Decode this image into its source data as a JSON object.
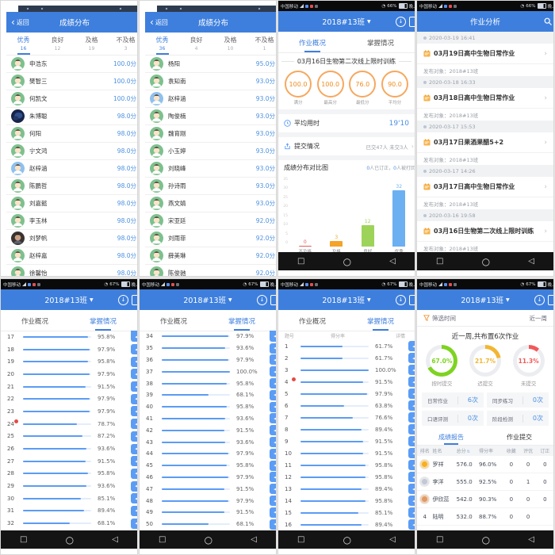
{
  "colors": {
    "header_blue": "#3e7fdd",
    "link_blue": "#4a90e2",
    "ring_orange": "#f08c1f",
    "progress_blue": "#5b9cf5"
  },
  "icons": {
    "back": "‹",
    "dropdown": "▼",
    "chevron": "›",
    "nav_recents": "□",
    "nav_home": "○",
    "nav_back": "◁",
    "download": "↓",
    "view_btn": "◂",
    "alarm": "◔",
    "sort": "⇅"
  },
  "common": {
    "back_label": "返回"
  },
  "status": {
    "carrier": "中国移动",
    "pct_row1": "66%",
    "pct_row2": "67%",
    "time": "晚上2"
  },
  "grade_dist_a": {
    "title": "成绩分布",
    "tabs": [
      {
        "label": "优秀",
        "count": "16",
        "active": true
      },
      {
        "label": "良好",
        "count": "12"
      },
      {
        "label": "及格",
        "count": "19"
      },
      {
        "label": "不及格",
        "count": "3"
      }
    ],
    "students": [
      {
        "name": "申浩东",
        "score": "100.0分",
        "avatar": "cartoon"
      },
      {
        "name": "樊智三",
        "score": "100.0分",
        "avatar": "cartoon"
      },
      {
        "name": "何凯文",
        "score": "100.0分",
        "avatar": "cartoon"
      },
      {
        "name": "朱博聪",
        "score": "98.0分",
        "avatar": "photo"
      },
      {
        "name": "何阳",
        "score": "98.0分",
        "avatar": "cartoon"
      },
      {
        "name": "宁文鸿",
        "score": "98.0分",
        "avatar": "cartoon"
      },
      {
        "name": "赵梓涵",
        "score": "98.0分",
        "avatar": "boy"
      },
      {
        "name": "陈鹏哲",
        "score": "98.0分",
        "avatar": "cartoon"
      },
      {
        "name": "刘嘉懿",
        "score": "98.0分",
        "avatar": "cartoon"
      },
      {
        "name": "李玉林",
        "score": "98.0分",
        "avatar": "cartoon"
      },
      {
        "name": "刘梦帆",
        "score": "98.0分",
        "avatar": "photo2"
      },
      {
        "name": "赵梓嘉",
        "score": "98.0分",
        "avatar": "cartoon"
      },
      {
        "name": "徐馨怡",
        "score": "98.0分",
        "avatar": "cartoon"
      }
    ]
  },
  "grade_dist_b": {
    "title": "成绩分布",
    "tabs": [
      {
        "label": "优秀",
        "count": "36",
        "active": true
      },
      {
        "label": "良好",
        "count": "4"
      },
      {
        "label": "及格",
        "count": "10"
      },
      {
        "label": "不及格",
        "count": "1"
      }
    ],
    "students": [
      {
        "name": "杨阳",
        "score": "95.0分",
        "avatar": "cartoon"
      },
      {
        "name": "袁知南",
        "score": "93.0分",
        "avatar": "cartoon"
      },
      {
        "name": "赵梓涵",
        "score": "93.0分",
        "avatar": "boy"
      },
      {
        "name": "陶俊楠",
        "score": "93.0分",
        "avatar": "cartoon"
      },
      {
        "name": "魏育刚",
        "score": "93.0分",
        "avatar": "cartoon"
      },
      {
        "name": "小玉婷",
        "score": "93.0分",
        "avatar": "cartoon"
      },
      {
        "name": "刘晓峰",
        "score": "93.0分",
        "avatar": "cartoon"
      },
      {
        "name": "孙诗雨",
        "score": "93.0分",
        "avatar": "cartoon"
      },
      {
        "name": "燕文婧",
        "score": "93.0分",
        "avatar": "cartoon"
      },
      {
        "name": "宋亚廷",
        "score": "92.0分",
        "avatar": "cartoon"
      },
      {
        "name": "刘雨菲",
        "score": "92.0分",
        "avatar": "cartoon"
      },
      {
        "name": "薛美琳",
        "score": "92.0分",
        "avatar": "cartoon"
      },
      {
        "name": "陈俊驰",
        "score": "92.0分",
        "avatar": "cartoon"
      }
    ]
  },
  "overview": {
    "class_name": "2018#13班",
    "tab_left": "作业概况",
    "tab_right": "掌握情况",
    "hw_title": "03月16日生物第二次线上限时训练",
    "rings": [
      {
        "value": "100.0",
        "label": "满分"
      },
      {
        "value": "100.0",
        "label": "最高分"
      },
      {
        "value": "76.0",
        "label": "最低分"
      },
      {
        "value": "90.0",
        "label": "平均分"
      }
    ],
    "avg_label": "平均用时",
    "avg_value": "19'10",
    "submit_label": "提交情况",
    "submit_info": "已交47人 未交3人",
    "dist_label": "成绩分布对比图",
    "dist_info": [
      {
        "t": "0",
        "b": true
      },
      {
        "t": "人已订正，"
      },
      {
        "t": "0",
        "b": true
      },
      {
        "t": "人被打回"
      }
    ],
    "chart": {
      "type": "bar",
      "y_ticks": [
        "35",
        "30",
        "25",
        "20",
        "15",
        "10",
        "5",
        "0"
      ],
      "bars": [
        {
          "name": "不及格",
          "range": "[0%~59%]",
          "value": 0,
          "color": "#e85b5b"
        },
        {
          "name": "及格",
          "range": "[60%~79%]",
          "value": 3,
          "color": "#f5a32a"
        },
        {
          "name": "良好",
          "range": "[80%~89%]",
          "value": 12,
          "color": "#9ed35a"
        },
        {
          "name": "优秀",
          "range": "[90%~100%]",
          "value": 32,
          "color": "#6cb0f2"
        }
      ]
    }
  },
  "analysis": {
    "title": "作业分析",
    "items": [
      {
        "time": "2020-03-19 16:41",
        "title": "03月19日高中生物日常作业",
        "target": "发布对象：2018#13班"
      },
      {
        "time": "2020-03-18 16:33",
        "title": "03月18日高中生物日常作业",
        "target": "发布对象：2018#13班"
      },
      {
        "time": "2020-03-17 15:53",
        "title": "03月17日果酒果醋5+2",
        "target": "发布对象：2018#13班"
      },
      {
        "time": "2020-03-17 14:26",
        "title": "03月17日高中生物日常作业",
        "target": "发布对象：2018#13班"
      },
      {
        "time": "2020-03-16 19:58",
        "title": "03月16日生物第二次线上限时训练",
        "target": "发布对象：2018#13班"
      }
    ]
  },
  "mastery_a": {
    "class_name": "2018#13班",
    "tab_left": "作业概况",
    "tab_right": "掌握情况",
    "rows": [
      {
        "n": "17",
        "p": 95.8
      },
      {
        "n": "18",
        "p": 97.9
      },
      {
        "n": "19",
        "p": 95.8
      },
      {
        "n": "20",
        "p": 97.9
      },
      {
        "n": "21",
        "p": 91.5
      },
      {
        "n": "22",
        "p": 97.9
      },
      {
        "n": "23",
        "p": 97.9
      },
      {
        "n": "24",
        "p": 78.7,
        "red": true
      },
      {
        "n": "25",
        "p": 87.2
      },
      {
        "n": "26",
        "p": 93.6
      },
      {
        "n": "27",
        "p": 91.5
      },
      {
        "n": "28",
        "p": 95.8
      },
      {
        "n": "29",
        "p": 93.6
      },
      {
        "n": "30",
        "p": 85.1
      },
      {
        "n": "31",
        "p": 89.4
      },
      {
        "n": "32",
        "p": 68.1
      }
    ]
  },
  "mastery_b": {
    "class_name": "2018#13班",
    "tab_left": "作业概况",
    "tab_right": "掌握情况",
    "rows": [
      {
        "n": "34",
        "p": 97.9
      },
      {
        "n": "35",
        "p": 93.6
      },
      {
        "n": "36",
        "p": 97.9
      },
      {
        "n": "37",
        "p": 100.0
      },
      {
        "n": "38",
        "p": 95.8
      },
      {
        "n": "39",
        "p": 68.1
      },
      {
        "n": "40",
        "p": 95.8
      },
      {
        "n": "41",
        "p": 93.6
      },
      {
        "n": "42",
        "p": 91.5
      },
      {
        "n": "43",
        "p": 93.6
      },
      {
        "n": "44",
        "p": 97.9
      },
      {
        "n": "45",
        "p": 95.8
      },
      {
        "n": "46",
        "p": 97.9
      },
      {
        "n": "47",
        "p": 91.5
      },
      {
        "n": "48",
        "p": 97.9
      },
      {
        "n": "49",
        "p": 91.5
      },
      {
        "n": "50",
        "p": 68.1
      }
    ]
  },
  "mastery_c": {
    "class_name": "2018#13班",
    "tab_left": "作业概况",
    "tab_right": "掌握情况",
    "col_no": "题号",
    "col_rate": "得分率",
    "col_detail": "详情",
    "rows": [
      {
        "n": "1",
        "p": 61.7
      },
      {
        "n": "2",
        "p": 61.7
      },
      {
        "n": "3",
        "p": 100.0
      },
      {
        "n": "4",
        "p": 91.5,
        "red": true
      },
      {
        "n": "5",
        "p": 97.9
      },
      {
        "n": "6",
        "p": 63.8
      },
      {
        "n": "7",
        "p": 76.6
      },
      {
        "n": "8",
        "p": 89.4
      },
      {
        "n": "9",
        "p": 91.5
      },
      {
        "n": "10",
        "p": 91.5
      },
      {
        "n": "11",
        "p": 95.8
      },
      {
        "n": "12",
        "p": 95.8
      },
      {
        "n": "13",
        "p": 89.4
      },
      {
        "n": "14",
        "p": 95.8
      },
      {
        "n": "15",
        "p": 85.1
      },
      {
        "n": "16",
        "p": 89.4
      }
    ]
  },
  "report": {
    "class_name": "2018#13班",
    "filter_label": "筛选时间",
    "filter_value": "近一周",
    "summary": "近一周,共布置6次作业",
    "donuts": [
      {
        "pct": 67,
        "text": "67.0%",
        "label": "按时提交",
        "color": "#7ed321"
      },
      {
        "pct": 21.7,
        "text": "21.7%",
        "label": "迟提交",
        "color": "#f2b632"
      },
      {
        "pct": 11.3,
        "text": "11.3%",
        "label": "未提交",
        "color": "#f05a5a"
      }
    ],
    "stats": [
      {
        "label": "日常作业",
        "value": "6次"
      },
      {
        "label": "同步练习",
        "value": "0次"
      },
      {
        "label": "口语评测",
        "value": "0次"
      },
      {
        "label": "阶段检测",
        "value": "0次"
      }
    ],
    "tab_left": "成绩报告",
    "tab_right": "作业提交",
    "table": {
      "headers": [
        {
          "t": "排名"
        },
        {
          "t": "姓名"
        },
        {
          "t": "总分",
          "sort": true
        },
        {
          "t": "得分率"
        },
        {
          "t": "收藏"
        },
        {
          "t": "评优"
        },
        {
          "t": "订正"
        }
      ],
      "rows": [
        {
          "rank": "1",
          "medal": "#f6b026",
          "name": "罗祥",
          "total": "576.0",
          "rate": "96.0%",
          "c1": "0",
          "c2": "0",
          "c3": "0"
        },
        {
          "rank": "2",
          "medal": "#c3c9d4",
          "name": "李洋",
          "total": "555.0",
          "rate": "92.5%",
          "c1": "0",
          "c2": "1",
          "c3": "0"
        },
        {
          "rank": "3",
          "medal": "#e09a62",
          "name": "伊欣蕊",
          "total": "542.0",
          "rate": "90.3%",
          "c1": "0",
          "c2": "0",
          "c3": "0"
        },
        {
          "rank": "4",
          "medal": "",
          "name": "陆明",
          "total": "532.0",
          "rate": "88.7%",
          "c1": "0",
          "c2": "0",
          "c3": ""
        }
      ]
    }
  }
}
